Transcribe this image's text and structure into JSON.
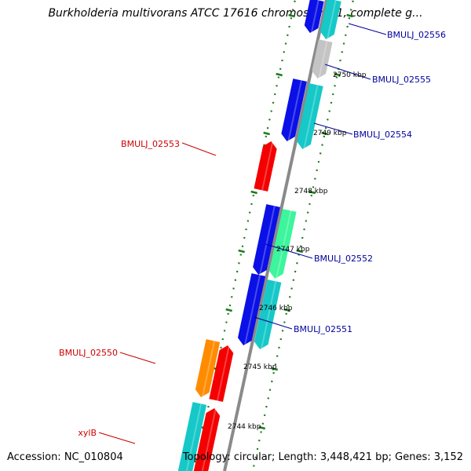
{
  "title": "Burkholderia multivorans ATCC 17616 chromosome 1, complete g...",
  "accession": "Accession: NC_010804",
  "topology": "Topology: circular; Length: 3,448,421 bp; Genes: 3,152",
  "colors": {
    "backbone": "#8a8a8a",
    "tick": "#1e7a1e",
    "label_forward": "#cc0000",
    "label_reverse": "#00009c",
    "blue": "#0a10e6",
    "cyan": "#16c8c8",
    "red": "#f40000",
    "orange": "#ff8c00",
    "gray": "#c4c4c4",
    "green": "#3cf59c"
  },
  "scale_labels": [
    "2750 kbp",
    "2749 kbp",
    "2748 kbp",
    "2747 kbp",
    "2746 kbp",
    "2745 kbp",
    "2744 kbp"
  ],
  "gene_labels": [
    {
      "id": "g1",
      "text": "BMULJ_02556",
      "strand": "reverse"
    },
    {
      "id": "g2",
      "text": "BMULJ_02555",
      "strand": "reverse"
    },
    {
      "id": "g3",
      "text": "BMULJ_02554",
      "strand": "reverse"
    },
    {
      "id": "g4",
      "text": "BMULJ_02553",
      "strand": "forward"
    },
    {
      "id": "g5",
      "text": "BMULJ_02552",
      "strand": "reverse"
    },
    {
      "id": "g6",
      "text": "BMULJ_02551",
      "strand": "reverse"
    },
    {
      "id": "g7",
      "text": "BMULJ_02550",
      "strand": "forward"
    },
    {
      "id": "g8",
      "text": "xylB",
      "strand": "forward"
    }
  ]
}
